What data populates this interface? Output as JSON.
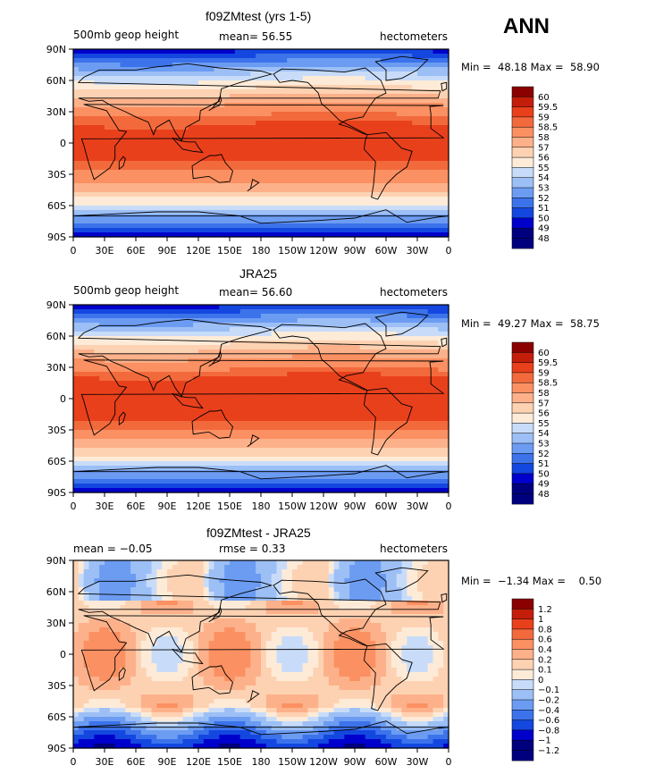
{
  "season": "ANN",
  "colors": {
    "ramp12": [
      "#00007f",
      "#0000cc",
      "#1447e0",
      "#3c73eb",
      "#6c9cf2",
      "#9cbff6",
      "#c8dcf9",
      "#fdebd8",
      "#fdd2b2",
      "#fcb18a",
      "#fb9062",
      "#f26a3c",
      "#e9401c",
      "#c41e0a",
      "#8b0000"
    ],
    "land_outline": "#000000"
  },
  "chart_data": [
    {
      "type": "heatmap",
      "title": "f09ZMtest (yrs 1-5)",
      "left_label": "500mb geop height",
      "center_label": "mean=  56.55",
      "right_label": "hectometers",
      "minmax": "Min =  48.18 Max =  58.90",
      "xticks": [
        "0",
        "30E",
        "60E",
        "90E",
        "120E",
        "150E",
        "180",
        "150W",
        "120W",
        "90W",
        "60W",
        "30W",
        "0"
      ],
      "yticks": [
        "90N",
        "60N",
        "30N",
        "0",
        "30S",
        "60S",
        "90S"
      ],
      "xlim": [
        0,
        360
      ],
      "ylim": [
        -90,
        90
      ],
      "levels": [
        "60",
        "59.5",
        "59",
        "58.5",
        "58",
        "57",
        "56",
        "55",
        "54",
        "53",
        "52",
        "51",
        "50",
        "49",
        "48"
      ],
      "field": "abs",
      "stats": {
        "mean": 56.55,
        "min": 48.18,
        "max": 58.9
      }
    },
    {
      "type": "heatmap",
      "title": "JRA25",
      "left_label": "500mb geop height",
      "center_label": "mean=  56.60",
      "right_label": "hectometers",
      "minmax": "Min =  49.27 Max =  58.75",
      "xticks": [
        "0",
        "30E",
        "60E",
        "90E",
        "120E",
        "150E",
        "180",
        "150W",
        "120W",
        "90W",
        "60W",
        "30W",
        "0"
      ],
      "yticks": [
        "90N",
        "60N",
        "30N",
        "0",
        "30S",
        "60S",
        "90S"
      ],
      "xlim": [
        0,
        360
      ],
      "ylim": [
        -90,
        90
      ],
      "levels": [
        "60",
        "59.5",
        "59",
        "58.5",
        "58",
        "57",
        "56",
        "55",
        "54",
        "53",
        "52",
        "51",
        "50",
        "49",
        "48"
      ],
      "field": "abs",
      "stats": {
        "mean": 56.6,
        "min": 49.27,
        "max": 58.75
      }
    },
    {
      "type": "heatmap",
      "title": "f09ZMtest - JRA25",
      "left_label": "mean =  −0.05",
      "center_label": "rmse =    0.33",
      "right_label": "hectometers",
      "minmax": "Min =  −1.34 Max =    0.50",
      "xticks": [
        "0",
        "30E",
        "60E",
        "90E",
        "120E",
        "150E",
        "180",
        "150W",
        "120W",
        "90W",
        "60W",
        "30W",
        "0"
      ],
      "yticks": [
        "90N",
        "60N",
        "30N",
        "0",
        "30S",
        "60S",
        "90S"
      ],
      "xlim": [
        0,
        360
      ],
      "ylim": [
        -90,
        90
      ],
      "levels": [
        "1.2",
        "1",
        "0.8",
        "0.6",
        "0.4",
        "0.2",
        "0.1",
        "0",
        "−0.1",
        "−0.2",
        "−0.4",
        "−0.6",
        "−0.8",
        "−1",
        "−1.2"
      ],
      "field": "diff",
      "stats": {
        "mean": -0.05,
        "rmse": 0.33,
        "min": -1.34,
        "max": 0.5
      }
    }
  ]
}
